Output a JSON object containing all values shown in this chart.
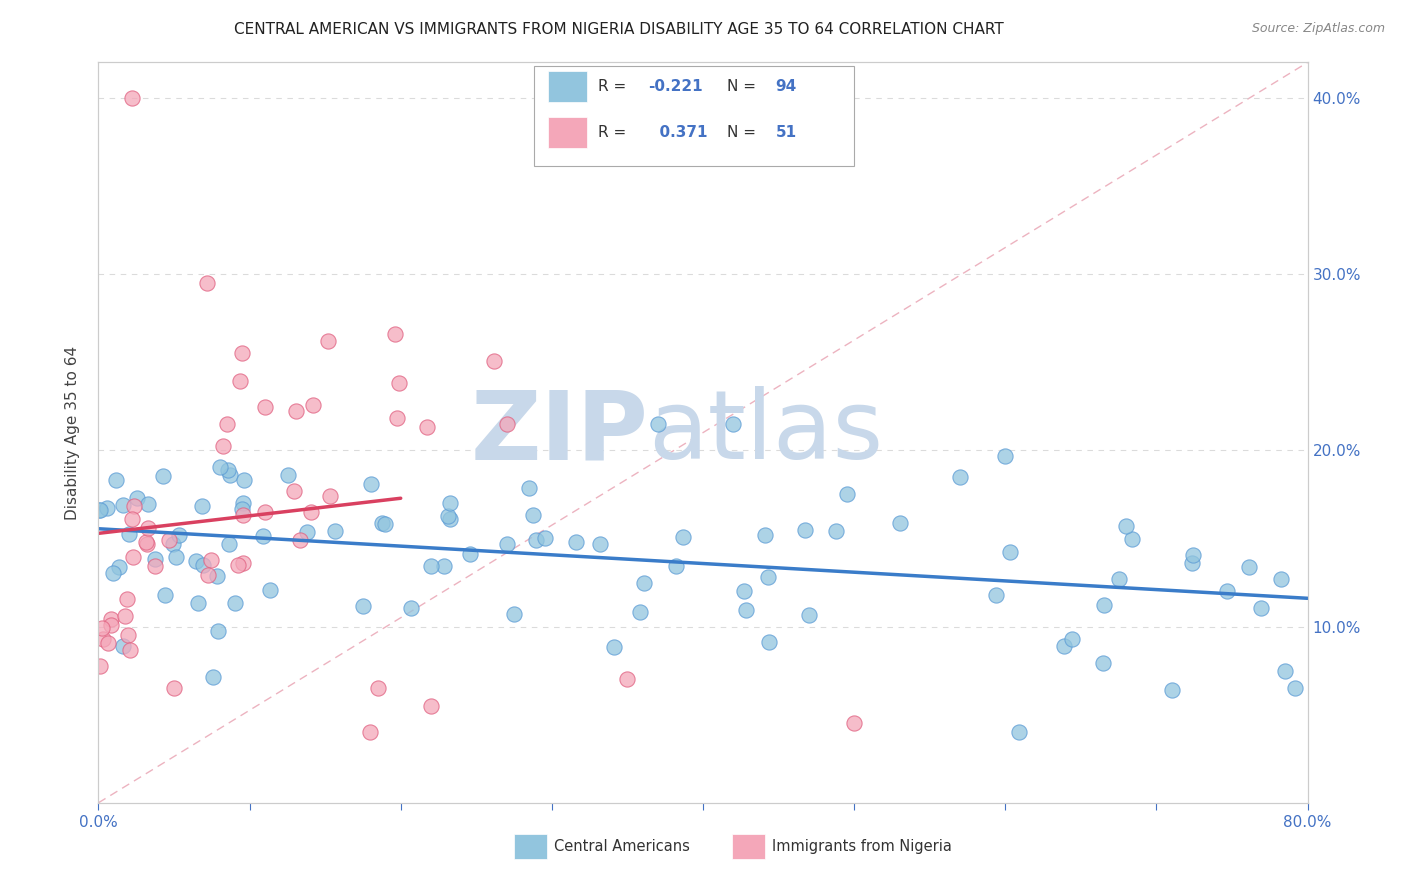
{
  "title": "CENTRAL AMERICAN VS IMMIGRANTS FROM NIGERIA DISABILITY AGE 35 TO 64 CORRELATION CHART",
  "source": "Source: ZipAtlas.com",
  "ylabel": "Disability Age 35 to 64",
  "xlim": [
    0.0,
    0.8
  ],
  "ylim": [
    0.0,
    0.42
  ],
  "R_blue": -0.221,
  "N_blue": 94,
  "R_pink": 0.371,
  "N_pink": 51,
  "legend_label_blue": "Central Americans",
  "legend_label_pink": "Immigrants from Nigeria",
  "blue_color": "#92c5de",
  "blue_edge": "#5b9bd5",
  "pink_color": "#f4a7b9",
  "pink_edge": "#e06080",
  "trend_blue_color": "#3a7cc9",
  "trend_pink_color": "#d94060",
  "diag_color": "#e8a0b0",
  "watermark_color": "#c8d8ea",
  "background_color": "#ffffff",
  "grid_color": "#cccccc",
  "tick_color": "#4472c4",
  "title_color": "#222222",
  "source_color": "#888888",
  "ylabel_color": "#444444"
}
